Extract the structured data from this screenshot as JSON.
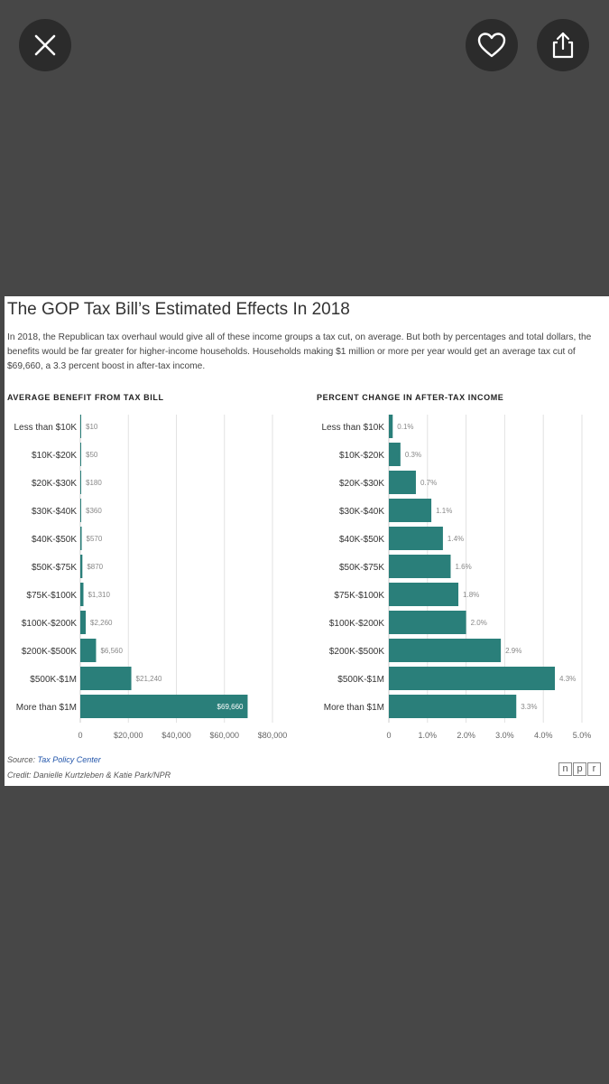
{
  "toolbar": {
    "close_icon": "close-icon",
    "like_icon": "heart-icon",
    "share_icon": "share-icon"
  },
  "card": {
    "title": "The GOP Tax Bill’s Estimated Effects In 2018",
    "description": "In 2018, the Republican tax overhaul would give all of these income groups a tax cut, on average. But both by percentages and total dollars, the benefits would be far greater for higher-income households. Households making $1 million or more per year would get an average tax cut of $69,660, a 3.3 percent boost in after-tax income.",
    "source_label": "Source:",
    "source_name": "Tax Policy Center",
    "credit": "Credit: Danielle Kurtzleben & Katie Park/NPR",
    "logo_letters": [
      "n",
      "p",
      "r"
    ]
  },
  "colors": {
    "bar": "#2a7f7a",
    "grid": "#e2e2e2",
    "background": "#474747"
  },
  "chart_data": [
    {
      "type": "bar",
      "orientation": "horizontal",
      "title": "AVERAGE BENEFIT FROM TAX BILL",
      "categories": [
        "Less than $10K",
        "$10K-$20K",
        "$20K-$30K",
        "$30K-$40K",
        "$40K-$50K",
        "$50K-$75K",
        "$75K-$100K",
        "$100K-$200K",
        "$200K-$500K",
        "$500K-$1M",
        "More than $1M"
      ],
      "values": [
        10,
        50,
        180,
        360,
        570,
        870,
        1310,
        2260,
        6560,
        21240,
        69660
      ],
      "data_labels": [
        "$10",
        "$50",
        "$180",
        "$360",
        "$570",
        "$870",
        "$1,310",
        "$2,260",
        "$6,560",
        "$21,240",
        "$69,660"
      ],
      "xlim": [
        0,
        80000
      ],
      "xticks": [
        0,
        20000,
        40000,
        60000,
        80000
      ],
      "xtick_labels": [
        "0",
        "$20,000",
        "$40,000",
        "$60,000",
        "$80,000"
      ]
    },
    {
      "type": "bar",
      "orientation": "horizontal",
      "title": "PERCENT CHANGE IN AFTER-TAX INCOME",
      "categories": [
        "Less than $10K",
        "$10K-$20K",
        "$20K-$30K",
        "$30K-$40K",
        "$40K-$50K",
        "$50K-$75K",
        "$75K-$100K",
        "$100K-$200K",
        "$200K-$500K",
        "$500K-$1M",
        "More than $1M"
      ],
      "values": [
        0.1,
        0.3,
        0.7,
        1.1,
        1.4,
        1.6,
        1.8,
        2.0,
        2.9,
        4.3,
        3.3
      ],
      "data_labels": [
        "0.1%",
        "0.3%",
        "0.7%",
        "1.1%",
        "1.4%",
        "1.6%",
        "1.8%",
        "2.0%",
        "2.9%",
        "4.3%",
        "3.3%"
      ],
      "xlim": [
        0,
        5
      ],
      "xticks": [
        0,
        1,
        2,
        3,
        4,
        5
      ],
      "xtick_labels": [
        "0",
        "1.0%",
        "2.0%",
        "3.0%",
        "4.0%",
        "5.0%"
      ]
    }
  ]
}
